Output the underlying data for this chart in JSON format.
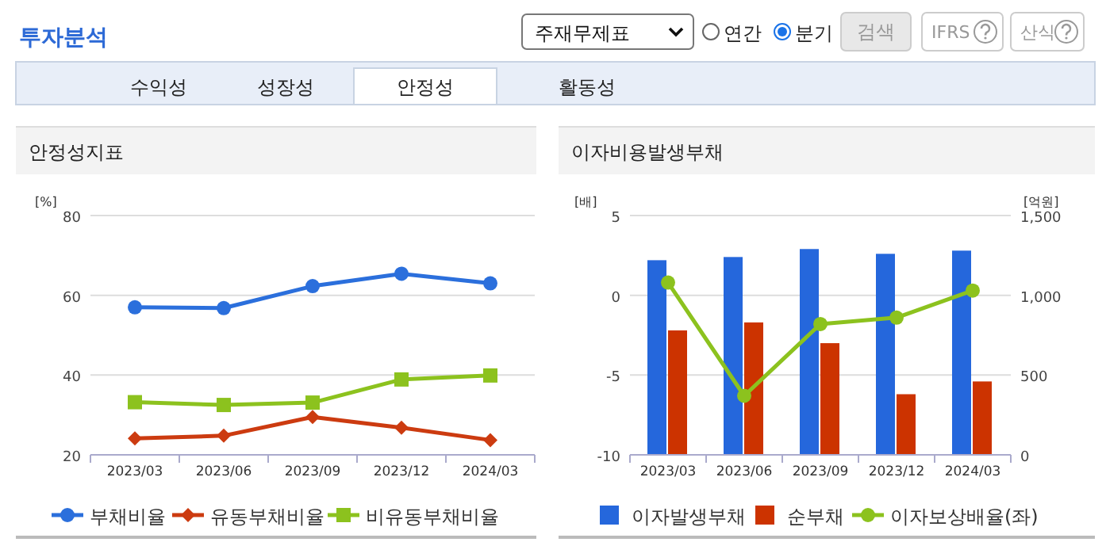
{
  "chart_data": [
    {
      "type": "other",
      "title": "투자분석",
      "annotations": [
        "주재무제표",
        "연간",
        "분기",
        "검색",
        "IFRS",
        "산식",
        "수익성",
        "성장성",
        "안정성",
        "활동성"
      ]
    },
    {
      "type": "line",
      "title": "안정성지표",
      "ylabel": "[%]",
      "categories": [
        "2023/03",
        "2023/06",
        "2023/09",
        "2023/12",
        "2024/03"
      ],
      "ylim": [
        20,
        80
      ],
      "yticks": [
        20,
        40,
        60,
        80
      ],
      "grid": "y",
      "legend": "bottom",
      "series": [
        {
          "name": "부채비율",
          "color": "#2b6fdc",
          "marker": "circle",
          "values": [
            57.0,
            56.8,
            62.3,
            65.4,
            63.0
          ]
        },
        {
          "name": "유동부채비율",
          "color": "#cc3b10",
          "marker": "diamond",
          "values": [
            24.1,
            24.8,
            29.5,
            26.8,
            23.7
          ]
        },
        {
          "name": "비유동부채비율",
          "color": "#8cc21e",
          "marker": "square",
          "values": [
            33.2,
            32.5,
            33.1,
            38.9,
            39.9
          ]
        }
      ]
    },
    {
      "type": "bar",
      "title": "이자비용발생부채",
      "ylabel": "[배]",
      "y2label": "[억원]",
      "categories": [
        "2023/03",
        "2023/06",
        "2023/09",
        "2023/12",
        "2024/03"
      ],
      "ylim": [
        -10,
        5
      ],
      "yticks": [
        -10,
        -5,
        0,
        5
      ],
      "y2lim": [
        0,
        1500
      ],
      "y2ticks": [
        0,
        500,
        {
          "value": 1000,
          "label": "1,000"
        },
        {
          "value": 1500,
          "label": "1,500"
        }
      ],
      "grid": "y",
      "legend": "bottom",
      "series": [
        {
          "name": "이자발생부채",
          "type": "bar",
          "axis": "y2",
          "color": "#2567dc",
          "values": [
            1220,
            1240,
            1290,
            1260,
            1280
          ]
        },
        {
          "name": "순부채",
          "type": "bar",
          "axis": "y2",
          "color": "#cc3300",
          "values": [
            780,
            830,
            700,
            380,
            460
          ]
        },
        {
          "name": "이자보상배율(좌)",
          "type": "line",
          "axis": "y",
          "marker": "circle",
          "color": "#8cc21e",
          "values": [
            0.8,
            -6.3,
            -1.8,
            -1.4,
            0.3
          ]
        }
      ]
    }
  ]
}
